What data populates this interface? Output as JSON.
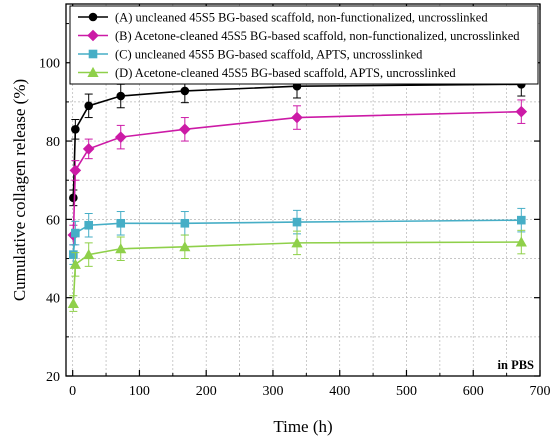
{
  "chart_data": {
    "type": "line",
    "xlabel": "Time (h)",
    "ylabel": "Cumulative collagen release (%)",
    "xlim": [
      -10,
      700
    ],
    "ylim": [
      20,
      115
    ],
    "xticks": [
      0,
      100,
      200,
      300,
      400,
      500,
      600,
      700
    ],
    "yticks": [
      20,
      40,
      60,
      80,
      100
    ],
    "grid": true,
    "legend_position": "top-left",
    "annotation": "in PBS",
    "series": [
      {
        "name": "(A) uncleaned 45S5 BG-based scaffold, non-functionalized, uncrosslinked",
        "color": "#000000",
        "marker": "circle",
        "x": [
          1,
          4,
          24,
          72,
          168,
          336,
          672
        ],
        "y": [
          65.5,
          83,
          89,
          91.5,
          92.8,
          94,
          94.5
        ],
        "err": [
          2,
          2.5,
          3,
          3,
          3,
          3,
          3
        ]
      },
      {
        "name": "(B) Acetone-cleaned 45S5 BG-based scaffold, non-functionalized, uncrosslinked",
        "color": "#cc1aa6",
        "marker": "diamond",
        "x": [
          1,
          4,
          24,
          72,
          168,
          336,
          672
        ],
        "y": [
          56,
          72.5,
          78,
          81,
          83,
          86,
          87.5
        ],
        "err": [
          2.5,
          2.5,
          2.5,
          3,
          3,
          3,
          3
        ]
      },
      {
        "name": "(C) uncleaned 45S5 BG-based scaffold, APTS, uncrosslinked",
        "color": "#46aec6",
        "marker": "square",
        "x": [
          1,
          4,
          24,
          72,
          168,
          336,
          672
        ],
        "y": [
          51,
          56.5,
          58.5,
          59,
          59,
          59.3,
          59.8
        ],
        "err": [
          2.5,
          3,
          3,
          3,
          3,
          3,
          3
        ]
      },
      {
        "name": "(D) Acetone-cleaned 45S5 BG-based scaffold, APTS, uncrosslinked",
        "color": "#8fd04a",
        "marker": "triangle",
        "x": [
          1,
          4,
          24,
          72,
          168,
          336,
          672
        ],
        "y": [
          38.5,
          48.5,
          51,
          52.5,
          53,
          54,
          54.2
        ],
        "err": [
          2,
          3,
          3,
          3,
          3,
          3,
          3
        ]
      }
    ]
  }
}
